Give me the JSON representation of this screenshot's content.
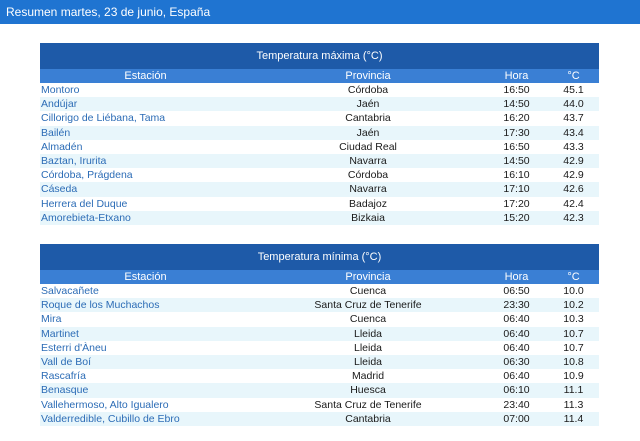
{
  "header": {
    "title": "Resumen martes, 23 de junio, España"
  },
  "max_table": {
    "title": "Temperatura máxima (°C)",
    "columns": {
      "station": "Estación",
      "province": "Provincia",
      "hour": "Hora",
      "temp": "°C"
    },
    "rows": [
      {
        "station": "Montoro",
        "province": "Córdoba",
        "hour": "16:50",
        "temp": "45.1"
      },
      {
        "station": "Andújar",
        "province": "Jaén",
        "hour": "14:50",
        "temp": "44.0"
      },
      {
        "station": "Cillorigo de Liébana, Tama",
        "province": "Cantabria",
        "hour": "16:20",
        "temp": "43.7"
      },
      {
        "station": "Bailén",
        "province": "Jaén",
        "hour": "17:30",
        "temp": "43.4"
      },
      {
        "station": "Almadén",
        "province": "Ciudad Real",
        "hour": "16:50",
        "temp": "43.3"
      },
      {
        "station": "Baztan, Irurita",
        "province": "Navarra",
        "hour": "14:50",
        "temp": "42.9"
      },
      {
        "station": "Córdoba, Prágdena",
        "province": "Córdoba",
        "hour": "16:10",
        "temp": "42.9"
      },
      {
        "station": "Cáseda",
        "province": "Navarra",
        "hour": "17:10",
        "temp": "42.6"
      },
      {
        "station": "Herrera del Duque",
        "province": "Badajoz",
        "hour": "17:20",
        "temp": "42.4"
      },
      {
        "station": "Amorebieta-Etxano",
        "province": "Bizkaia",
        "hour": "15:20",
        "temp": "42.3"
      }
    ]
  },
  "min_table": {
    "title": "Temperatura mínima (°C)",
    "columns": {
      "station": "Estación",
      "province": "Provincia",
      "hour": "Hora",
      "temp": "°C"
    },
    "rows": [
      {
        "station": "Salvacañete",
        "province": "Cuenca",
        "hour": "06:50",
        "temp": "10.0"
      },
      {
        "station": "Roque de los Muchachos",
        "province": "Santa Cruz de Tenerife",
        "hour": "23:30",
        "temp": "10.2"
      },
      {
        "station": "Mira",
        "province": "Cuenca",
        "hour": "06:40",
        "temp": "10.3"
      },
      {
        "station": "Martinet",
        "province": "Lleida",
        "hour": "06:40",
        "temp": "10.7"
      },
      {
        "station": "Esterri d'Àneu",
        "province": "Lleida",
        "hour": "06:40",
        "temp": "10.7"
      },
      {
        "station": "Vall de Boí",
        "province": "Lleida",
        "hour": "06:30",
        "temp": "10.8"
      },
      {
        "station": "Rascafría",
        "province": "Madrid",
        "hour": "06:40",
        "temp": "10.9"
      },
      {
        "station": "Benasque",
        "province": "Huesca",
        "hour": "06:10",
        "temp": "11.1"
      },
      {
        "station": "Vallehermoso, Alto Igualero",
        "province": "Santa Cruz de Tenerife",
        "hour": "23:40",
        "temp": "11.3"
      },
      {
        "station": "Valderredible, Cubillo de Ebro",
        "province": "Cantabria",
        "hour": "07:00",
        "temp": "11.4"
      }
    ]
  }
}
